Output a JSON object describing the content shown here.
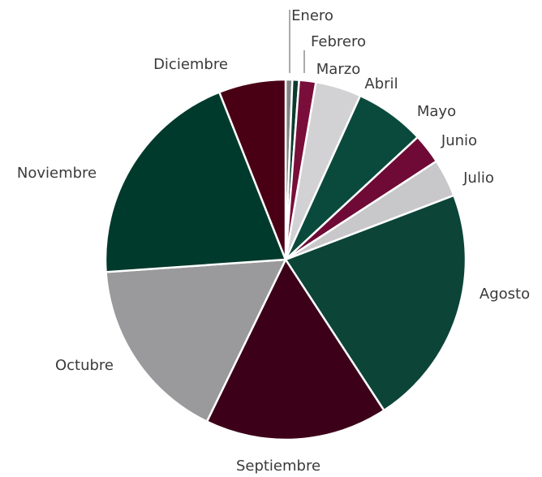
{
  "chart_data": {
    "type": "pie",
    "categories": [
      "Enero",
      "Febrero",
      "Marzo",
      "Abril",
      "Mayo",
      "Junio",
      "Julio",
      "Agosto",
      "Septiembre",
      "Octubre",
      "Noviembre",
      "Diciembre"
    ],
    "values": [
      0.6,
      0.6,
      1.5,
      4.1,
      6.3,
      2.7,
      3.4,
      21.6,
      16.4,
      16.7,
      20.1,
      6.0
    ],
    "colors": [
      "#808284",
      "#0b3b2e",
      "#7a0e3a",
      "#d2d2d4",
      "#0a4a3c",
      "#6e0a35",
      "#c8c8ca",
      "#0c4438",
      "#3d0019",
      "#9a9a9c",
      "#003a2c",
      "#4a0014"
    ]
  }
}
